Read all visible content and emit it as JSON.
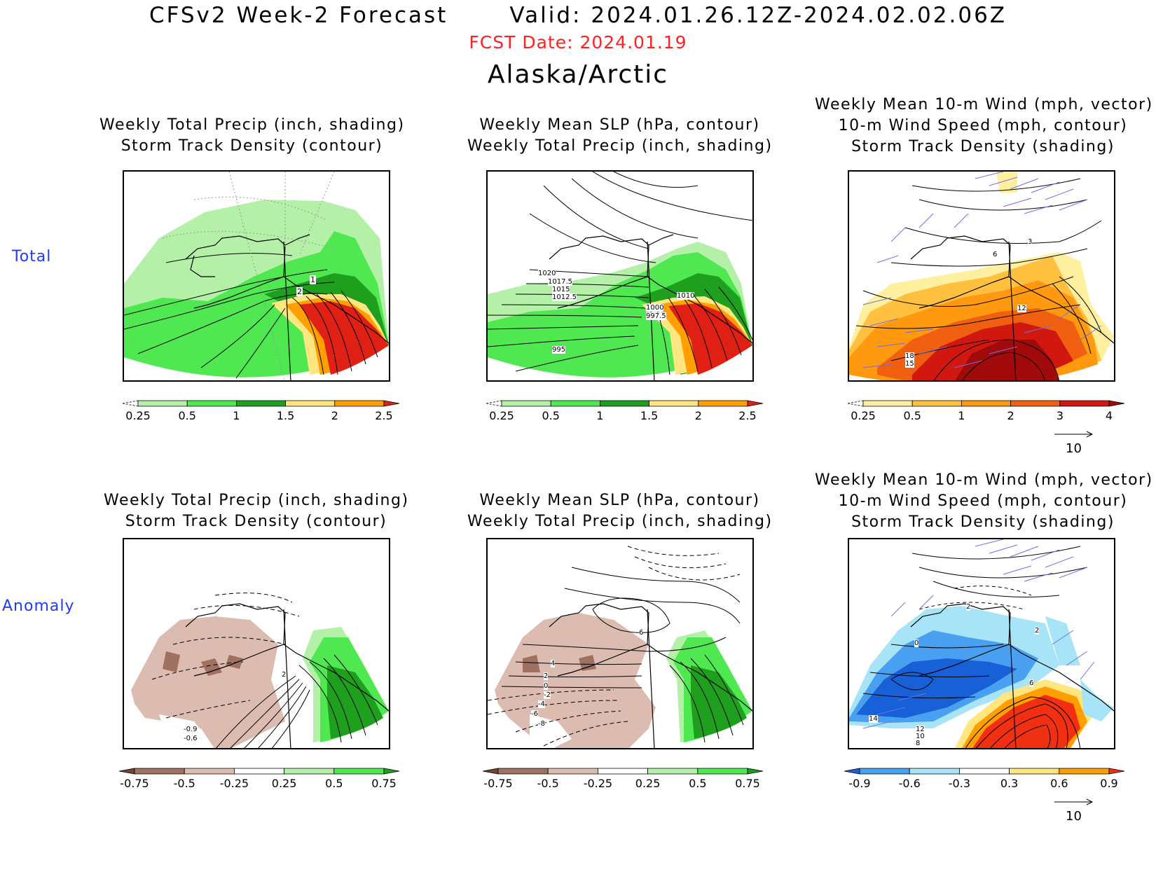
{
  "header": {
    "title": "CFSv2 Week-2 Forecast",
    "valid": "Valid: 2024.01.26.12Z-2024.02.02.06Z",
    "fcst_date": "FCST Date: 2024.01.19",
    "region": "Alaska/Arctic",
    "fcst_color": "#ff2020"
  },
  "rows": {
    "total": "Total",
    "anomaly": "Anomaly",
    "label_color": "#1f3bff"
  },
  "panels": {
    "p1": {
      "line1": "Weekly Total Precip (inch, shading)",
      "line2": "Storm Track Density (contour)"
    },
    "p2": {
      "line1": "Weekly Mean SLP (hPa, contour)",
      "line2": "Weekly Total Precip (inch, shading)"
    },
    "p3": {
      "line1": "Weekly Mean 10-m Wind (mph, vector)",
      "line2": "10-m Wind Speed (mph, contour)",
      "line3": "Storm Track Density (shading)"
    },
    "p4": {
      "line1": "Weekly Total Precip (inch, shading)",
      "line2": "Storm Track Density (contour)"
    },
    "p5": {
      "line1": "Weekly Mean SLP (hPa, contour)",
      "line2": "Weekly Total Precip (inch, shading)"
    },
    "p6": {
      "line1": "Weekly Mean 10-m Wind (mph, vector)",
      "line2": "10-m Wind Speed (mph, contour)",
      "line3": "Storm Track Density (shading)"
    }
  },
  "contour_labels": {
    "p1": [
      "1",
      "2"
    ],
    "p2": [
      "1020",
      "1017.5",
      "1015",
      "1012.5",
      "995",
      "1010",
      "1000",
      "997.5"
    ],
    "p3": [
      "6",
      "3",
      "12",
      "18",
      "15"
    ],
    "p4": [
      "-0.9",
      "-0.6",
      "2"
    ],
    "p5": [
      "6",
      "4",
      "2",
      "0",
      "-2",
      "-4",
      "-6",
      "-8"
    ],
    "p6": [
      "0",
      "2",
      "2",
      "6",
      "14",
      "12",
      "10",
      "8"
    ]
  },
  "colorbars": {
    "precip_total": {
      "ticks": [
        "0.25",
        "0.5",
        "1",
        "1.5",
        "2",
        "2.5"
      ],
      "colors": [
        "#ffffff",
        "#b4f0a8",
        "#50e850",
        "#1ea01e",
        "#ffe680",
        "#ffa000",
        "#e02014"
      ]
    },
    "storm_total": {
      "ticks": [
        "0.25",
        "0.5",
        "1",
        "2",
        "3",
        "4"
      ],
      "colors": [
        "#ffffff",
        "#fff0a0",
        "#ffc040",
        "#ff9a10",
        "#f06010",
        "#d01810",
        "#a00a0a"
      ]
    },
    "precip_anom": {
      "ticks": [
        "-0.75",
        "-0.5",
        "-0.25",
        "0.25",
        "0.5",
        "0.75"
      ],
      "colors": [
        "#6e4632",
        "#a07060",
        "#dcbcb0",
        "#ffffff",
        "#b4f0a8",
        "#50e850",
        "#1ea01e"
      ]
    },
    "storm_anom": {
      "ticks": [
        "-0.9",
        "-0.6",
        "-0.3",
        "0.3",
        "0.6",
        "0.9"
      ],
      "colors": [
        "#1860d8",
        "#4aa0f0",
        "#a8e4f8",
        "#ffffff",
        "#ffe680",
        "#ffa000",
        "#f03010"
      ]
    }
  },
  "vector_reference": "10",
  "vector_color": "#7070e0"
}
